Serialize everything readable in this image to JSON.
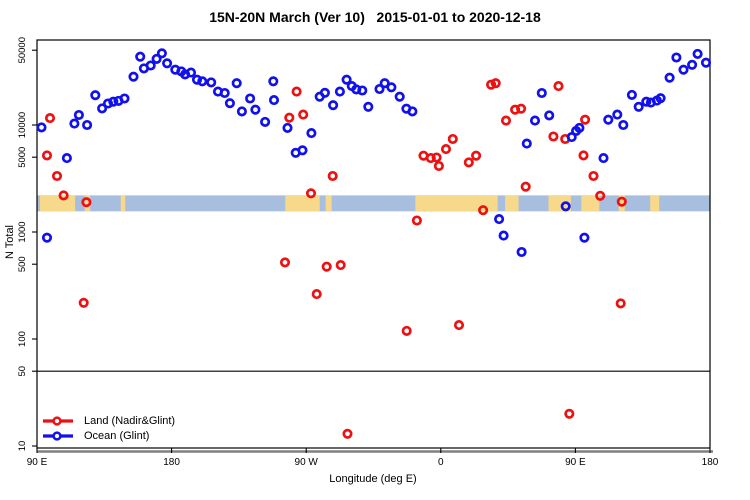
{
  "chart": {
    "title": "15N-20N March (Ver 10)   2015-01-01 to 2020-12-18",
    "xlabel": "Longitude (deg E)",
    "ylabel": "N Total",
    "legend": [
      {
        "label": "Land (Nadir&Glint)",
        "color": "#EE1111"
      },
      {
        "label": "Ocean (Glint)",
        "color": "#1111EE"
      }
    ]
  },
  "chart_data": {
    "type": "scatter",
    "title": "15N-20N March (Ver 10)   2015-01-01 to 2020-12-18",
    "xlabel": "Longitude (deg E)",
    "ylabel": "N Total",
    "log_y": true,
    "x_axis": {
      "range_deg": [
        90,
        540
      ],
      "note": "longitude axis wraps: 90E to 180, 90W, 0, 90E, 180",
      "ticks": [
        {
          "deg": 90,
          "label": "90 E"
        },
        {
          "deg": 180,
          "label": "180"
        },
        {
          "deg": 270,
          "label": "90 W"
        },
        {
          "deg": 360,
          "label": "0"
        },
        {
          "deg": 450,
          "label": "90 E"
        },
        {
          "deg": 540,
          "label": "180"
        }
      ]
    },
    "y_axis": {
      "range": [
        10,
        62000
      ],
      "ticks": [
        10,
        50,
        100,
        500,
        1000,
        5000,
        10000,
        50000
      ]
    },
    "threshold_line_y": 50,
    "series": [
      {
        "name": "Land (Nadir&Glint)",
        "key": "land",
        "color": "#EE1111",
        "points": [
          [
            96.7,
            5200
          ],
          [
            98.7,
            11600
          ],
          [
            103.4,
            3340
          ],
          [
            107.8,
            2200
          ],
          [
            121.2,
            218
          ],
          [
            123,
            1900
          ],
          [
            255.8,
            520
          ],
          [
            258.7,
            11700
          ],
          [
            263.6,
            20500
          ],
          [
            268,
            12500
          ],
          [
            273.2,
            2300
          ],
          [
            277,
            263
          ],
          [
            283.7,
            474
          ],
          [
            287.7,
            3340
          ],
          [
            293.1,
            490
          ],
          [
            297.6,
            13
          ],
          [
            337.2,
            119
          ],
          [
            344,
            1280
          ],
          [
            348.4,
            5170
          ],
          [
            353.3,
            4900
          ],
          [
            357.2,
            4970
          ],
          [
            358.7,
            4140
          ],
          [
            363.5,
            5950
          ],
          [
            368,
            7400
          ],
          [
            372.2,
            135
          ],
          [
            378.7,
            4470
          ],
          [
            383.6,
            5170
          ],
          [
            388.3,
            1600
          ],
          [
            393.6,
            23800
          ],
          [
            396.7,
            24600
          ],
          [
            403.6,
            11000
          ],
          [
            409.7,
            13900
          ],
          [
            413.7,
            14200
          ],
          [
            416.8,
            2650
          ],
          [
            435.3,
            7800
          ],
          [
            438.7,
            23100
          ],
          [
            443.2,
            7400
          ],
          [
            445.9,
            20
          ],
          [
            455.4,
            5200
          ],
          [
            456.5,
            11200
          ],
          [
            462.1,
            3340
          ],
          [
            466.6,
            2180
          ],
          [
            480.3,
            215
          ],
          [
            481,
            1920
          ]
        ]
      },
      {
        "name": "Ocean (Glint)",
        "key": "ocean",
        "color": "#1111EE",
        "points": [
          [
            93,
            9500
          ],
          [
            96.7,
            885
          ],
          [
            110,
            4900
          ],
          [
            115,
            10300
          ],
          [
            118,
            12400
          ],
          [
            123.5,
            10000
          ],
          [
            129,
            19000
          ],
          [
            133.5,
            14300
          ],
          [
            137.5,
            15900
          ],
          [
            141,
            16500
          ],
          [
            144.5,
            16800
          ],
          [
            148.5,
            17700
          ],
          [
            154.5,
            28300
          ],
          [
            159,
            43500
          ],
          [
            161.5,
            33800
          ],
          [
            166,
            36000
          ],
          [
            170,
            41500
          ],
          [
            173.5,
            46800
          ],
          [
            177,
            37700
          ],
          [
            182.5,
            32900
          ],
          [
            186.5,
            31700
          ],
          [
            189,
            29700
          ],
          [
            193,
            30900
          ],
          [
            197,
            26500
          ],
          [
            200.5,
            25600
          ],
          [
            206.5,
            25000
          ],
          [
            211,
            20500
          ],
          [
            215.5,
            19900
          ],
          [
            219,
            16000
          ],
          [
            223.5,
            24600
          ],
          [
            227,
            13400
          ],
          [
            232.5,
            17700
          ],
          [
            236,
            13900
          ],
          [
            242.5,
            10700
          ],
          [
            248,
            25600
          ],
          [
            248.5,
            17100
          ],
          [
            257.5,
            9400
          ],
          [
            263,
            5500
          ],
          [
            267.5,
            5800
          ],
          [
            273.5,
            8400
          ],
          [
            279,
            18400
          ],
          [
            282.5,
            20000
          ],
          [
            288,
            15300
          ],
          [
            292.5,
            20500
          ],
          [
            297,
            26500
          ],
          [
            300.5,
            23100
          ],
          [
            303.5,
            21500
          ],
          [
            307.5,
            21000
          ],
          [
            311.5,
            14800
          ],
          [
            319,
            21700
          ],
          [
            322.5,
            24600
          ],
          [
            327,
            22500
          ],
          [
            332.5,
            18400
          ],
          [
            337,
            14200
          ],
          [
            341,
            13400
          ],
          [
            399,
            1320
          ],
          [
            402,
            925
          ],
          [
            414,
            650
          ],
          [
            417.5,
            6700
          ],
          [
            423,
            11000
          ],
          [
            427.5,
            19900
          ],
          [
            432.5,
            12300
          ],
          [
            443.5,
            1740
          ],
          [
            447.5,
            7700
          ],
          [
            450.5,
            8800
          ],
          [
            452.7,
            9400
          ],
          [
            456,
            885
          ],
          [
            468.8,
            4900
          ],
          [
            472,
            11200
          ],
          [
            478,
            12500
          ],
          [
            482,
            10000
          ],
          [
            487.8,
            19100
          ],
          [
            492.3,
            14800
          ],
          [
            497.4,
            16500
          ],
          [
            500.5,
            16200
          ],
          [
            504.5,
            16900
          ],
          [
            507,
            17800
          ],
          [
            513,
            27700
          ],
          [
            517.5,
            42700
          ],
          [
            522.3,
            32900
          ],
          [
            528,
            36500
          ],
          [
            531.7,
            46200
          ],
          [
            537.3,
            38200
          ]
        ]
      }
    ],
    "map_band": {
      "description": "latitude-strip world map overlay, ocean vs land along 15N-20N",
      "value_top": 2200,
      "value_bottom": 1560,
      "ocean_color": "#A8BEDE",
      "land_color": "#F6D98A",
      "land_segments_deg": [
        [
          92,
          115.5
        ],
        [
          122,
          125.5
        ],
        [
          146,
          149
        ],
        [
          256,
          279
        ],
        [
          283,
          287
        ],
        [
          343,
          398
        ],
        [
          403,
          412
        ],
        [
          432,
          447
        ],
        [
          454,
          466
        ],
        [
          479,
          483
        ],
        [
          500,
          506
        ]
      ]
    }
  }
}
